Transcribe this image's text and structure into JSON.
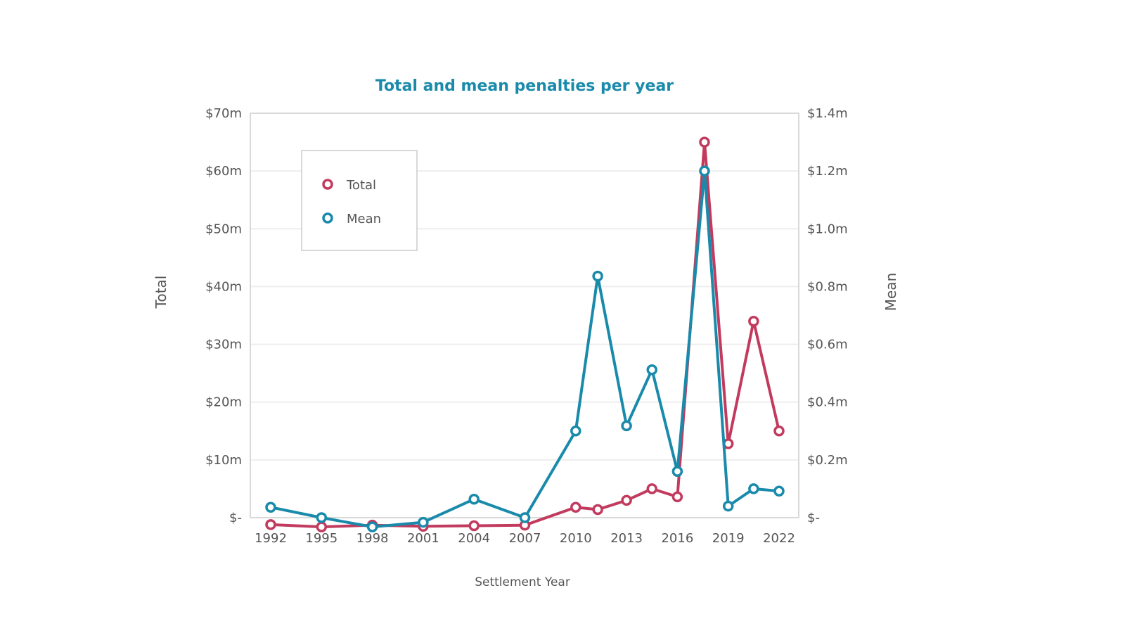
{
  "chart_data": {
    "type": "line",
    "title": "Total and mean penalties per year",
    "xlabel": "Settlement Year",
    "ylabel_left": "Total",
    "ylabel_right": "Mean",
    "x_tick_labels": [
      "1992",
      "1995",
      "1998",
      "2001",
      "2004",
      "2007",
      "2010",
      "2013",
      "2016",
      "2019",
      "2022"
    ],
    "xlim": [
      1992,
      2022
    ],
    "ylim_left": [
      0,
      70
    ],
    "ylim_right": [
      0,
      1.4
    ],
    "y_tick_labels_left": [
      "$-",
      "$10m",
      "$20m",
      "$30m",
      "$40m",
      "$50m",
      "$60m",
      "$70m"
    ],
    "y_tick_labels_right": [
      "$-",
      "$0.2m",
      "$0.4m",
      "$0.6m",
      "$0.8m",
      "$1.0m",
      "$1.2m",
      "$1.4m"
    ],
    "grid": true,
    "legend_position": "top-left",
    "series": [
      {
        "name": "Total",
        "axis": "left",
        "unit": "$m",
        "color": "#c23b5e",
        "points": [
          [
            1992,
            -1.2
          ],
          [
            1995,
            -1.6
          ],
          [
            1998,
            -1.3
          ],
          [
            2001,
            -1.5
          ],
          [
            2004,
            -1.4
          ],
          [
            2007,
            -1.3
          ],
          [
            2010,
            1.8
          ],
          [
            2011.3,
            1.4
          ],
          [
            2013,
            3.0
          ],
          [
            2014.5,
            5.0
          ],
          [
            2016,
            3.6
          ],
          [
            2017.6,
            65.0
          ],
          [
            2019,
            12.8
          ],
          [
            2020.5,
            34.0
          ],
          [
            2022,
            15.0
          ]
        ]
      },
      {
        "name": "Mean",
        "axis": "right",
        "unit": "$m",
        "color": "#1a8aab",
        "points": [
          [
            1992,
            0.036
          ],
          [
            1995,
            0.0
          ],
          [
            1998,
            -0.032
          ],
          [
            2001,
            -0.016
          ],
          [
            2004,
            0.064
          ],
          [
            2007,
            0.0
          ],
          [
            2010,
            0.3
          ],
          [
            2011.3,
            0.836
          ],
          [
            2013,
            0.318
          ],
          [
            2014.5,
            0.512
          ],
          [
            2016,
            0.16
          ],
          [
            2017.6,
            1.2
          ],
          [
            2019,
            0.04
          ],
          [
            2020.5,
            0.1
          ],
          [
            2022,
            0.092
          ]
        ]
      }
    ]
  }
}
